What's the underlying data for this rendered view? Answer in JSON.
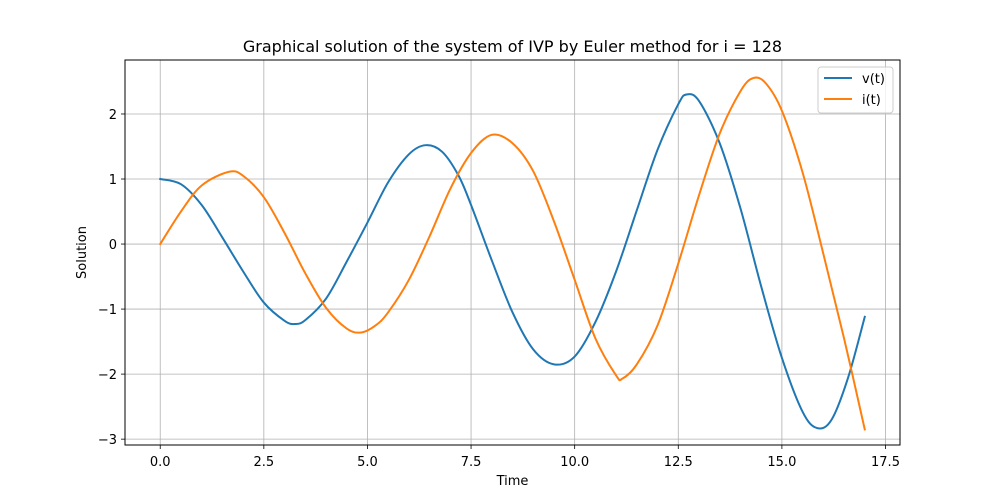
{
  "chart_data": {
    "type": "line",
    "title": "Graphical solution of the system of IVP by Euler method for i = 128",
    "xlabel": "Time",
    "ylabel": "Solution",
    "xlim": [
      -0.85,
      17.85
    ],
    "ylim": [
      -3.09,
      2.83
    ],
    "xticks": [
      0.0,
      2.5,
      5.0,
      7.5,
      10.0,
      12.5,
      15.0,
      17.5
    ],
    "xtick_labels": [
      "0.0",
      "2.5",
      "5.0",
      "7.5",
      "10.0",
      "12.5",
      "15.0",
      "17.5"
    ],
    "yticks": [
      -3,
      -2,
      -1,
      0,
      1,
      2
    ],
    "ytick_labels": [
      "−3",
      "−2",
      "−1",
      "0",
      "1",
      "2"
    ],
    "grid": true,
    "legend_position": "top-right",
    "series": [
      {
        "name": "v(t)",
        "color": "#1f77b4",
        "points": [
          [
            0.0,
            1.0
          ],
          [
            0.5,
            0.92
          ],
          [
            1.0,
            0.6
          ],
          [
            1.5,
            0.1
          ],
          [
            2.0,
            -0.42
          ],
          [
            2.5,
            -0.9
          ],
          [
            3.0,
            -1.18
          ],
          [
            3.25,
            -1.23
          ],
          [
            3.5,
            -1.17
          ],
          [
            4.0,
            -0.84
          ],
          [
            4.5,
            -0.27
          ],
          [
            5.0,
            0.33
          ],
          [
            5.5,
            0.95
          ],
          [
            6.0,
            1.38
          ],
          [
            6.4,
            1.52
          ],
          [
            6.8,
            1.42
          ],
          [
            7.2,
            1.05
          ],
          [
            7.5,
            0.6
          ],
          [
            8.0,
            -0.25
          ],
          [
            8.5,
            -1.05
          ],
          [
            9.0,
            -1.62
          ],
          [
            9.5,
            -1.85
          ],
          [
            10.0,
            -1.73
          ],
          [
            10.5,
            -1.2
          ],
          [
            11.0,
            -0.42
          ],
          [
            11.5,
            0.52
          ],
          [
            12.0,
            1.45
          ],
          [
            12.5,
            2.15
          ],
          [
            12.7,
            2.3
          ],
          [
            13.0,
            2.2
          ],
          [
            13.5,
            1.55
          ],
          [
            14.0,
            0.55
          ],
          [
            14.5,
            -0.65
          ],
          [
            15.0,
            -1.75
          ],
          [
            15.5,
            -2.58
          ],
          [
            15.85,
            -2.83
          ],
          [
            16.2,
            -2.7
          ],
          [
            16.6,
            -2.05
          ],
          [
            17.0,
            -1.12
          ]
        ]
      },
      {
        "name": "i(t)",
        "color": "#ff7f0e",
        "points": [
          [
            0.0,
            0.0
          ],
          [
            0.5,
            0.5
          ],
          [
            1.0,
            0.9
          ],
          [
            1.65,
            1.11
          ],
          [
            2.0,
            1.05
          ],
          [
            2.5,
            0.72
          ],
          [
            3.0,
            0.17
          ],
          [
            3.5,
            -0.45
          ],
          [
            4.0,
            -0.98
          ],
          [
            4.5,
            -1.3
          ],
          [
            4.85,
            -1.36
          ],
          [
            5.2,
            -1.25
          ],
          [
            5.5,
            -1.05
          ],
          [
            6.0,
            -0.55
          ],
          [
            6.5,
            0.12
          ],
          [
            7.0,
            0.85
          ],
          [
            7.5,
            1.4
          ],
          [
            8.0,
            1.68
          ],
          [
            8.5,
            1.55
          ],
          [
            9.0,
            1.12
          ],
          [
            9.5,
            0.35
          ],
          [
            10.0,
            -0.55
          ],
          [
            10.5,
            -1.45
          ],
          [
            11.0,
            -2.02
          ],
          [
            11.15,
            -2.07
          ],
          [
            11.5,
            -1.85
          ],
          [
            12.0,
            -1.25
          ],
          [
            12.5,
            -0.3
          ],
          [
            13.0,
            0.75
          ],
          [
            13.5,
            1.7
          ],
          [
            14.0,
            2.35
          ],
          [
            14.3,
            2.55
          ],
          [
            14.6,
            2.48
          ],
          [
            15.0,
            2.05
          ],
          [
            15.5,
            1.1
          ],
          [
            16.0,
            -0.15
          ],
          [
            16.5,
            -1.45
          ],
          [
            17.0,
            -2.85
          ]
        ]
      }
    ]
  }
}
